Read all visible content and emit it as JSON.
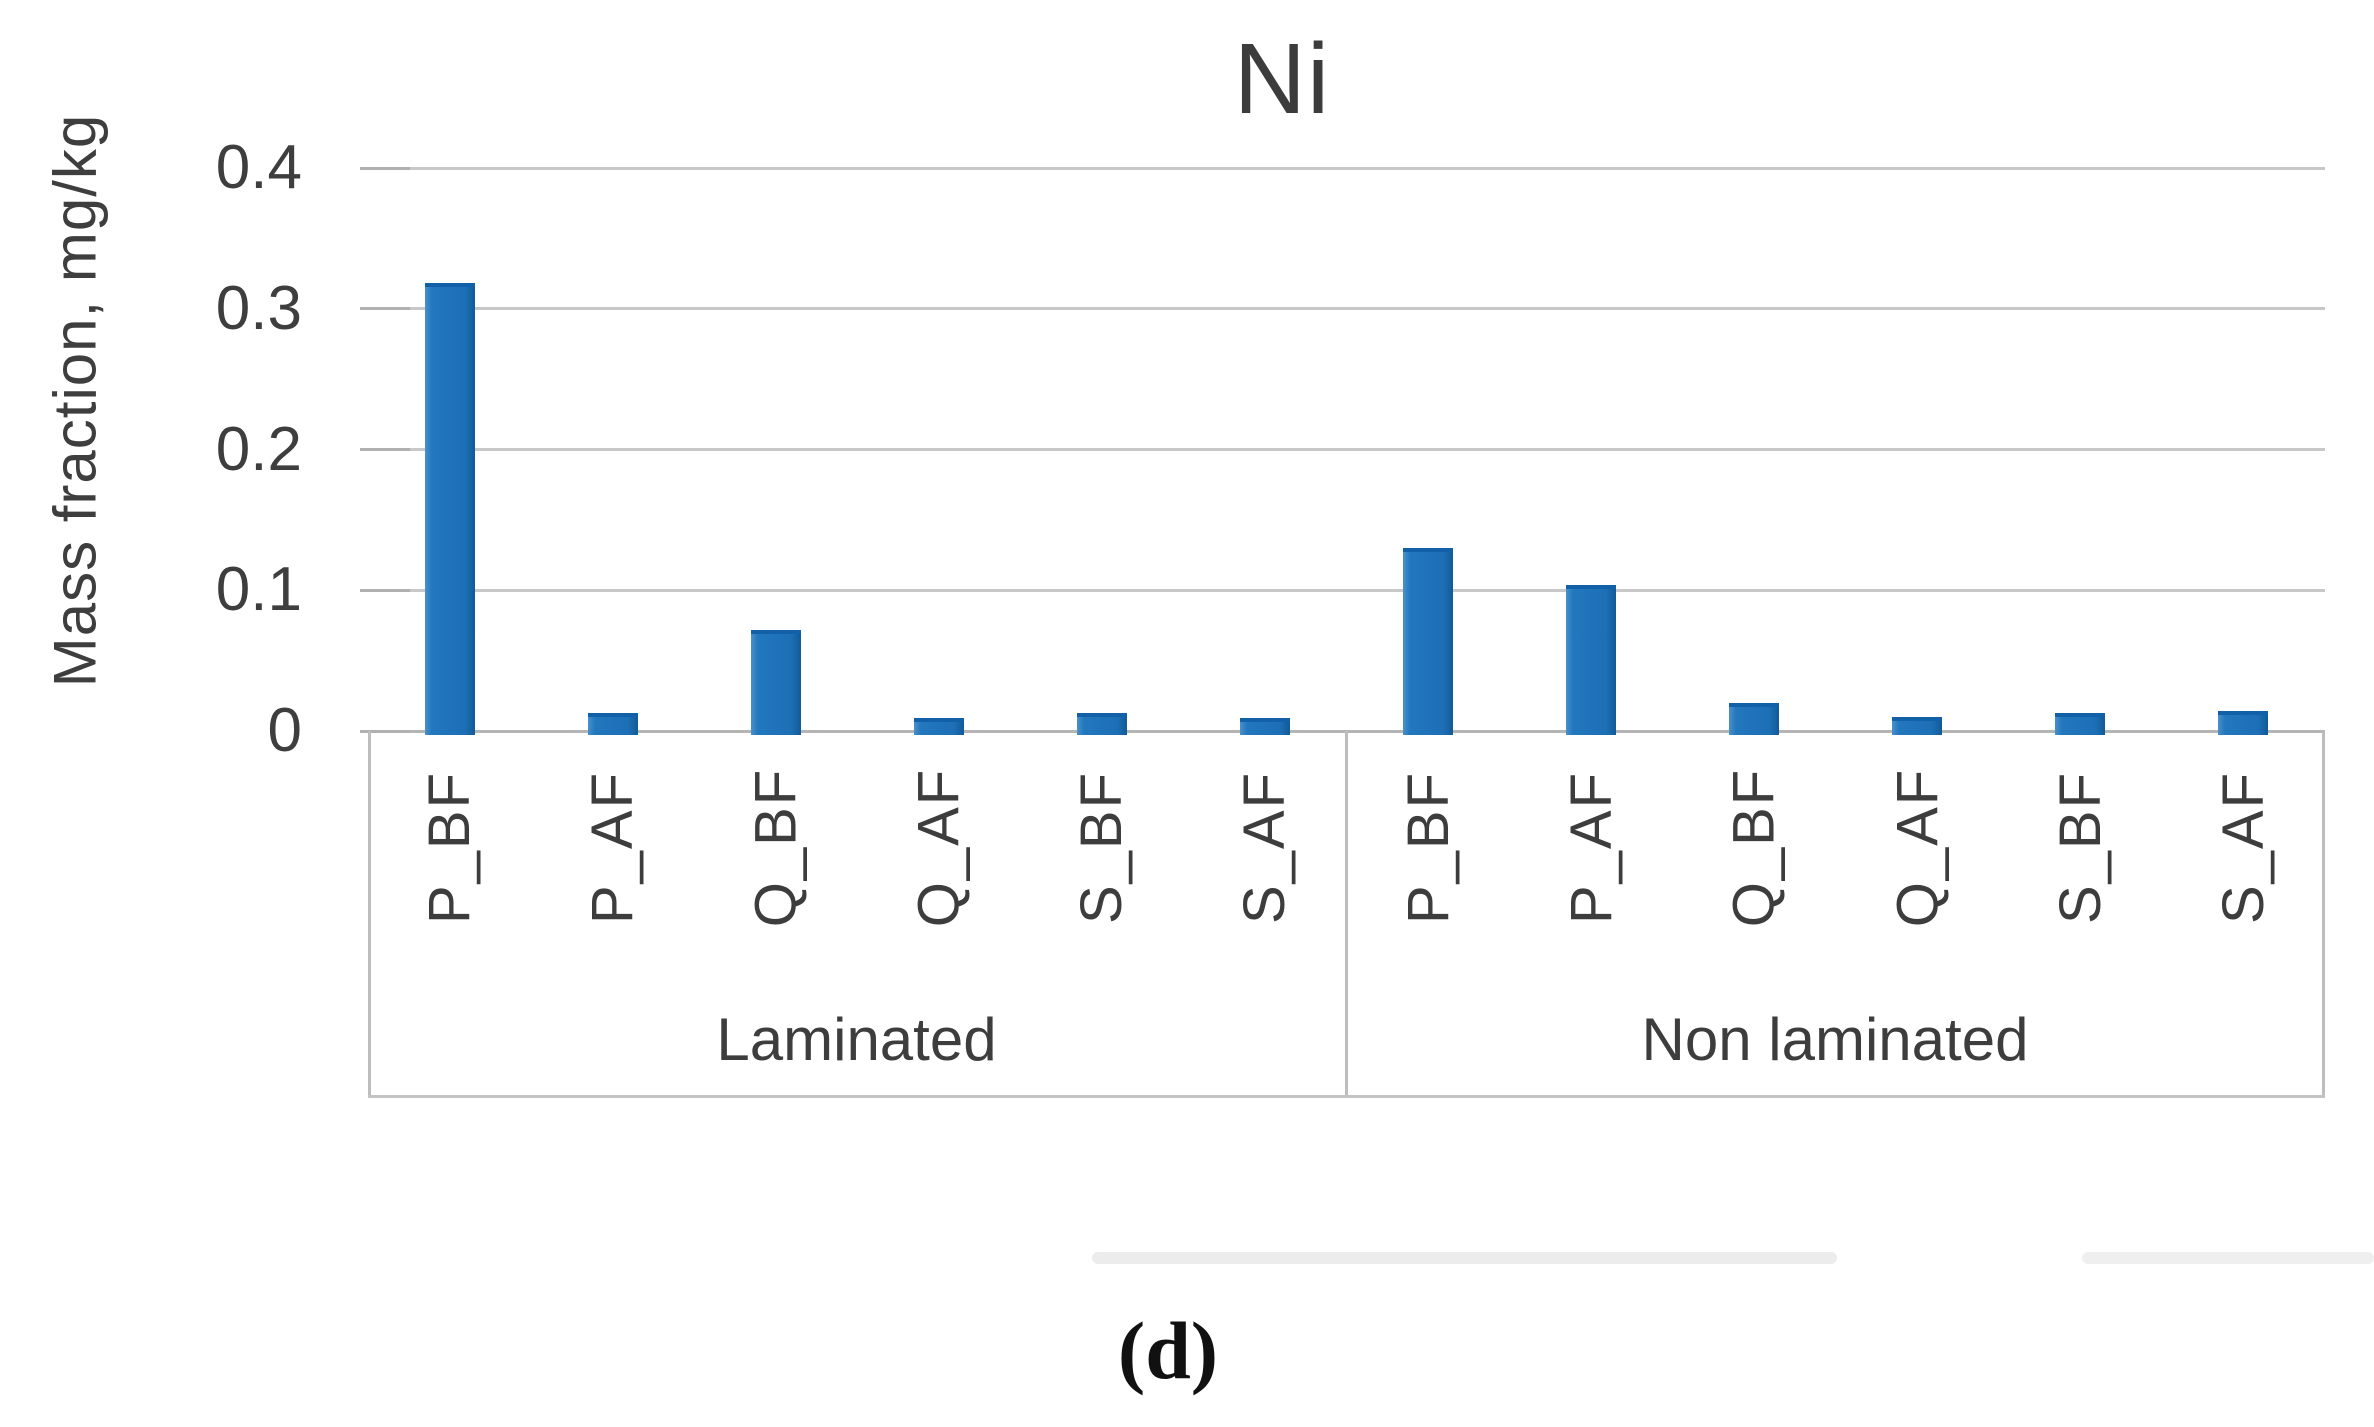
{
  "title": "Ni",
  "caption": "(d)",
  "y_axis": {
    "label": "Mass fraction, mg/kg",
    "tick_labels": [
      "0.4",
      "0.3",
      "0.2",
      "0.1",
      "0"
    ]
  },
  "colors": {
    "bar": "#1f72b8",
    "gridline": "#c8c8c8",
    "axis_box": "#bdbdbd",
    "text": "#3d3d3d"
  },
  "chart_data": {
    "type": "bar",
    "title": "Ni",
    "xlabel": "",
    "ylabel": "Mass fraction, mg/kg",
    "ylim": [
      0,
      0.4
    ],
    "yticks": [
      0,
      0.1,
      0.2,
      0.3,
      0.4
    ],
    "ytick_labels": [
      "0",
      "0.1",
      "0.2",
      "0.3",
      "0.4"
    ],
    "grid": true,
    "legend": false,
    "bar_color": "#1f72b8",
    "categories": [
      "P_BF",
      "P_AF",
      "Q_BF",
      "Q_AF",
      "S_BF",
      "S_AF"
    ],
    "groups": [
      {
        "label": "Laminated",
        "categories": [
          "P_BF",
          "P_AF",
          "Q_BF",
          "Q_AF",
          "S_BF",
          "S_AF"
        ],
        "values": [
          0.318,
          0.013,
          0.072,
          0.009,
          0.013,
          0.009
        ]
      },
      {
        "label": "Non laminated",
        "categories": [
          "P_BF",
          "P_AF",
          "Q_BF",
          "Q_AF",
          "S_BF",
          "S_AF"
        ],
        "values": [
          0.13,
          0.104,
          0.02,
          0.01,
          0.013,
          0.014
        ]
      }
    ]
  }
}
